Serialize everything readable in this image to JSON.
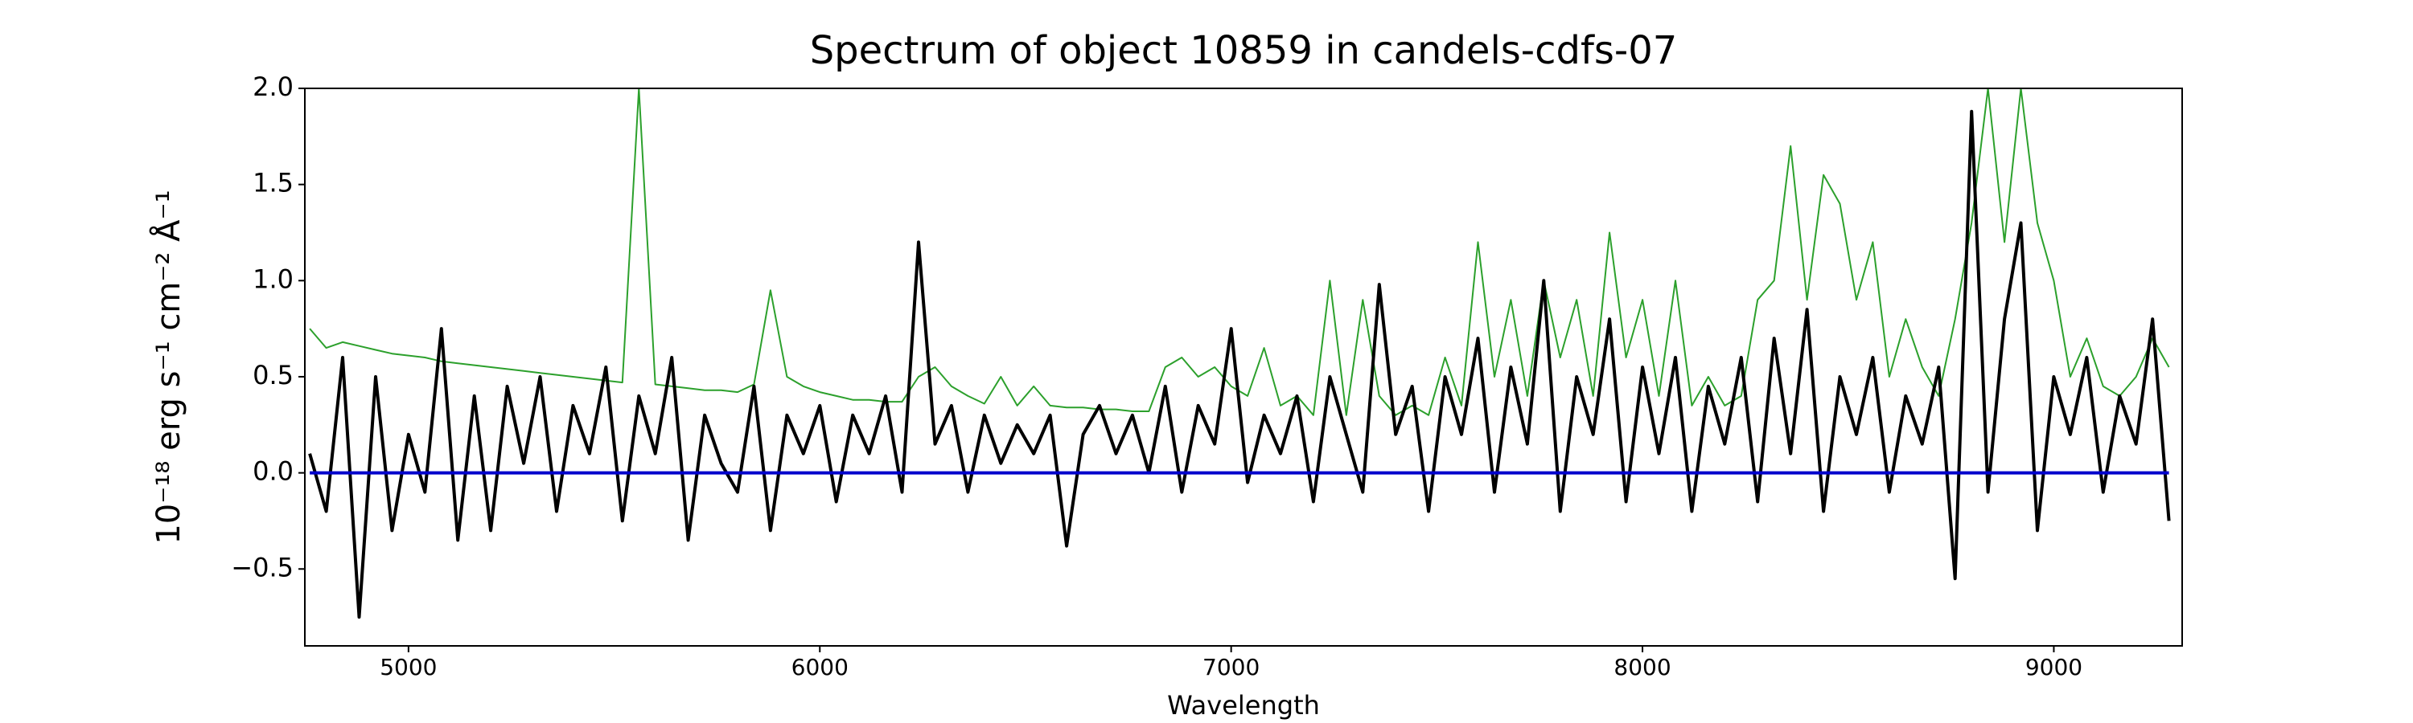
{
  "chart_data": {
    "type": "line",
    "title": "Spectrum of object 10859 in candels-cdfs-07",
    "x_label": "Wavelength",
    "y_label": "10⁻¹⁸ erg s⁻¹ cm⁻² Å⁻¹",
    "xlim": [
      4748,
      9312
    ],
    "ylim": [
      -0.9,
      2.0
    ],
    "xticks": [
      5000,
      6000,
      7000,
      8000,
      9000
    ],
    "yticks": [
      {
        "value": -0.5,
        "label": "−0.5"
      },
      {
        "value": 0,
        "label": "0.0"
      },
      {
        "value": 0.5,
        "label": "0.5"
      },
      {
        "value": 1,
        "label": "1.0"
      },
      {
        "value": 1.5,
        "label": "1.5"
      },
      {
        "value": 2,
        "label": "2.0"
      }
    ],
    "grid": false,
    "series": [
      {
        "color": "#2ca02c",
        "width": 2,
        "x": [
          4760,
          4800,
          4840,
          4880,
          4920,
          4960,
          5000,
          5040,
          5080,
          5120,
          5160,
          5200,
          5240,
          5280,
          5320,
          5360,
          5400,
          5440,
          5480,
          5520,
          5560,
          5600,
          5640,
          5680,
          5720,
          5760,
          5800,
          5840,
          5880,
          5920,
          5960,
          6000,
          6040,
          6080,
          6120,
          6160,
          6200,
          6240,
          6280,
          6320,
          6360,
          6400,
          6440,
          6480,
          6520,
          6560,
          6600,
          6640,
          6680,
          6720,
          6760,
          6800,
          6840,
          6880,
          6920,
          6960,
          7000,
          7040,
          7080,
          7120,
          7160,
          7200,
          7240,
          7280,
          7320,
          7360,
          7400,
          7440,
          7480,
          7520,
          7560,
          7600,
          7640,
          7680,
          7720,
          7760,
          7800,
          7840,
          7880,
          7920,
          7960,
          8000,
          8040,
          8080,
          8120,
          8160,
          8200,
          8240,
          8280,
          8320,
          8360,
          8400,
          8440,
          8480,
          8520,
          8560,
          8600,
          8640,
          8680,
          8720,
          8760,
          8800,
          8840,
          8880,
          8920,
          8960,
          9000,
          9040,
          9080,
          9120,
          9160,
          9200,
          9240,
          9280
        ],
        "values": [
          0.75,
          0.65,
          0.68,
          0.66,
          0.64,
          0.62,
          0.61,
          0.6,
          0.58,
          0.57,
          0.56,
          0.55,
          0.54,
          0.53,
          0.52,
          0.51,
          0.5,
          0.49,
          0.48,
          0.47,
          2.0,
          0.46,
          0.45,
          0.44,
          0.43,
          0.43,
          0.42,
          0.46,
          0.95,
          0.5,
          0.45,
          0.42,
          0.4,
          0.38,
          0.38,
          0.37,
          0.37,
          0.5,
          0.55,
          0.45,
          0.4,
          0.36,
          0.5,
          0.35,
          0.45,
          0.35,
          0.34,
          0.34,
          0.33,
          0.33,
          0.32,
          0.32,
          0.55,
          0.6,
          0.5,
          0.55,
          0.45,
          0.4,
          0.65,
          0.35,
          0.4,
          0.3,
          1.0,
          0.3,
          0.9,
          0.4,
          0.3,
          0.35,
          0.3,
          0.6,
          0.35,
          1.2,
          0.5,
          0.9,
          0.4,
          1.0,
          0.6,
          0.9,
          0.4,
          1.25,
          0.6,
          0.9,
          0.4,
          1.0,
          0.35,
          0.5,
          0.35,
          0.4,
          0.9,
          1.0,
          1.7,
          0.9,
          1.55,
          1.4,
          0.9,
          1.2,
          0.5,
          0.8,
          0.55,
          0.4,
          0.8,
          1.3,
          2.0,
          1.2,
          2.0,
          1.3,
          1.0,
          0.5,
          0.7,
          0.45,
          0.4,
          0.5,
          0.7,
          0.55
        ]
      },
      {
        "color": "#000000",
        "width": 4,
        "x": [
          4760,
          4800,
          4840,
          4880,
          4920,
          4960,
          5000,
          5040,
          5080,
          5120,
          5160,
          5200,
          5240,
          5280,
          5320,
          5360,
          5400,
          5440,
          5480,
          5520,
          5560,
          5600,
          5640,
          5680,
          5720,
          5760,
          5800,
          5840,
          5880,
          5920,
          5960,
          6000,
          6040,
          6080,
          6120,
          6160,
          6200,
          6240,
          6280,
          6320,
          6360,
          6400,
          6440,
          6480,
          6520,
          6560,
          6600,
          6640,
          6680,
          6720,
          6760,
          6800,
          6840,
          6880,
          6920,
          6960,
          7000,
          7040,
          7080,
          7120,
          7160,
          7200,
          7240,
          7280,
          7320,
          7360,
          7400,
          7440,
          7480,
          7520,
          7560,
          7600,
          7640,
          7680,
          7720,
          7760,
          7800,
          7840,
          7880,
          7920,
          7960,
          8000,
          8040,
          8080,
          8120,
          8160,
          8200,
          8240,
          8280,
          8320,
          8360,
          8400,
          8440,
          8480,
          8520,
          8560,
          8600,
          8640,
          8680,
          8720,
          8760,
          8800,
          8840,
          8880,
          8920,
          8960,
          9000,
          9040,
          9080,
          9120,
          9160,
          9200,
          9240,
          9280
        ],
        "values": [
          0.1,
          -0.2,
          0.6,
          -0.75,
          0.5,
          -0.3,
          0.2,
          -0.1,
          0.75,
          -0.35,
          0.4,
          -0.3,
          0.45,
          0.05,
          0.5,
          -0.2,
          0.35,
          0.1,
          0.55,
          -0.25,
          0.4,
          0.1,
          0.6,
          -0.35,
          0.3,
          0.05,
          -0.1,
          0.45,
          -0.3,
          0.3,
          0.1,
          0.35,
          -0.15,
          0.3,
          0.1,
          0.4,
          -0.1,
          1.2,
          0.15,
          0.35,
          -0.1,
          0.3,
          0.05,
          0.25,
          0.1,
          0.3,
          -0.38,
          0.2,
          0.35,
          0.1,
          0.3,
          0,
          0.45,
          -0.1,
          0.35,
          0.15,
          0.75,
          -0.05,
          0.3,
          0.1,
          0.4,
          -0.15,
          0.5,
          0.2,
          -0.1,
          0.98,
          0.2,
          0.45,
          -0.2,
          0.5,
          0.2,
          0.7,
          -0.1,
          0.55,
          0.15,
          1.0,
          -0.2,
          0.5,
          0.2,
          0.8,
          -0.15,
          0.55,
          0.1,
          0.6,
          -0.2,
          0.45,
          0.15,
          0.6,
          -0.15,
          0.7,
          0.1,
          0.85,
          -0.2,
          0.5,
          0.2,
          0.6,
          -0.1,
          0.4,
          0.15,
          0.55,
          -0.55,
          1.88,
          -0.1,
          0.8,
          1.3,
          -0.3,
          0.5,
          0.2,
          0.6,
          -0.1,
          0.4,
          0.15,
          0.8,
          -0.25
        ]
      },
      {
        "color": "#0000cc",
        "width": 4,
        "x": [
          4760,
          9280
        ],
        "values": [
          0,
          0
        ]
      }
    ]
  }
}
